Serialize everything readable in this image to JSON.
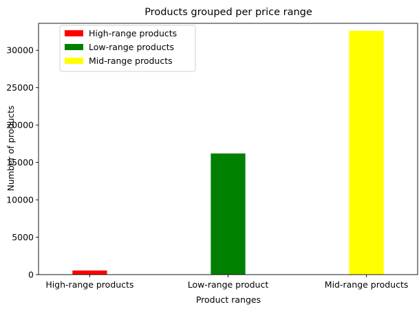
{
  "chart_data": {
    "type": "bar",
    "title": "Products grouped per price range",
    "xlabel": "Product ranges",
    "ylabel": "Number of products",
    "categories": [
      "High-range products",
      "Low-range product",
      "Mid-range products"
    ],
    "values": [
      550,
      16200,
      32600
    ],
    "colors": [
      "#ff0000",
      "#008000",
      "#ffff00"
    ],
    "ylim": [
      0,
      33600
    ],
    "yticks": [
      0,
      5000,
      10000,
      15000,
      20000,
      25000,
      30000
    ],
    "legend": {
      "placement": "top-left",
      "entries": [
        {
          "label": "High-range products",
          "color": "#ff0000"
        },
        {
          "label": "Low-range products",
          "color": "#008000"
        },
        {
          "label": "Mid-range products",
          "color": "#ffff00"
        }
      ]
    },
    "grid": false
  }
}
